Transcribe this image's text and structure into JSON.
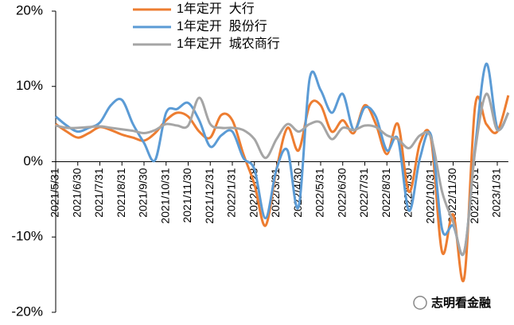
{
  "chart_data": {
    "type": "line",
    "categories": [
      "2021/5/31",
      null,
      "2021/6/30",
      null,
      "2021/7/31",
      null,
      "2021/8/31",
      null,
      "2021/9/30",
      null,
      "2021/10/31",
      null,
      "2021/11/30",
      null,
      "2021/12/31",
      null,
      "2022/1/31",
      null,
      "2022/2/28",
      null,
      "2022/3/31",
      null,
      "2022/4/30",
      null,
      "2022/5/31",
      null,
      "2022/6/30",
      null,
      "2022/7/31",
      null,
      "2022/8/31",
      null,
      "2022/9/30",
      null,
      "2022/10/31",
      null,
      "2022/11/30",
      null,
      "2022/12/31",
      null,
      "2023/1/31",
      null
    ],
    "series": [
      {
        "name": "1年定开  大行",
        "color": "#ED7D31",
        "values": [
          5.0,
          4.0,
          3.2,
          3.8,
          4.6,
          4.2,
          3.6,
          3.2,
          2.8,
          3.8,
          5.5,
          6.5,
          6.0,
          4.0,
          3.2,
          6.2,
          5.5,
          1.0,
          -3,
          -8.5,
          -1,
          4.5,
          1.5,
          7.5,
          7.5,
          4.0,
          5.5,
          3.8,
          7.5,
          5.0,
          1.0,
          5.0,
          -4,
          2.5,
          3.0,
          -12,
          -7,
          -15.5,
          7.5,
          5.0,
          4.0,
          8.8
        ]
      },
      {
        "name": "1年定开  股份行",
        "color": "#5B9BD5",
        "values": [
          6.0,
          4.8,
          4.0,
          4.5,
          5.2,
          7.5,
          8.2,
          5.0,
          2.5,
          0.2,
          6.5,
          7.0,
          7.8,
          5.5,
          2.0,
          3.5,
          4.0,
          0.5,
          -1,
          -7.5,
          -1,
          1.5,
          -6,
          11,
          9.5,
          6.5,
          9.0,
          4.2,
          7.2,
          6.0,
          1.5,
          3.0,
          -6.5,
          0.5,
          3.5,
          -9,
          -8.5,
          -12,
          2,
          13,
          4.5,
          6.5
        ]
      },
      {
        "name": "1年定开  城农商行",
        "color": "#A5A5A5",
        "values": [
          4.8,
          4.5,
          4.5,
          4.6,
          4.7,
          4.5,
          4.3,
          4.1,
          3.8,
          4.2,
          5.0,
          4.8,
          4.8,
          8.5,
          5.0,
          4.5,
          4.5,
          4.2,
          3.0,
          0.5,
          3.0,
          5.0,
          4.0,
          5.0,
          5.2,
          3.0,
          4.5,
          4.2,
          4.8,
          4.6,
          3.5,
          3.0,
          1.8,
          3.5,
          3.2,
          -4,
          -8,
          -12,
          1.5,
          9,
          4.2,
          6.5
        ]
      }
    ],
    "ylim": [
      -20,
      20
    ],
    "yticks": [
      {
        "value": 20,
        "label": "20%"
      },
      {
        "value": 10,
        "label": "10%"
      },
      {
        "value": 0,
        "label": "0%"
      },
      {
        "value": -10,
        "label": "-10%"
      },
      {
        "value": -20,
        "label": "-20%"
      }
    ],
    "legend": "top",
    "watermark": "志明看金融"
  }
}
